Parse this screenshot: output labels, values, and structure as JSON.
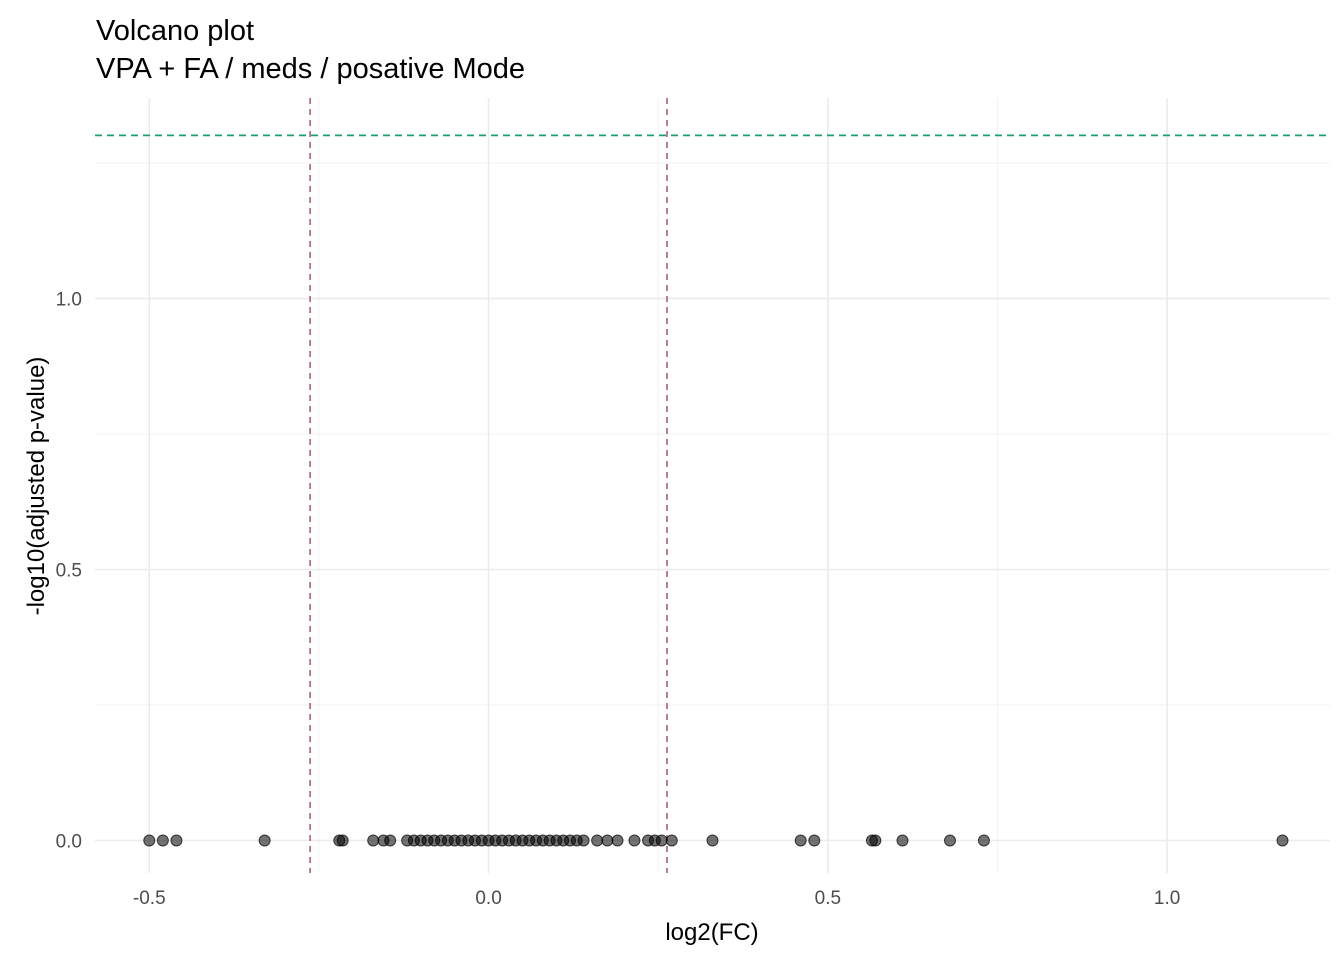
{
  "chart_data": {
    "type": "scatter",
    "title": "Volcano plot",
    "subtitle": "VPA + FA / meds / posative Mode",
    "xlabel": "log2(FC)",
    "ylabel": "-log10(adjusted p-value)",
    "xlim": [
      -0.58,
      1.24
    ],
    "ylim": [
      -0.06,
      1.37
    ],
    "x_ticks": [
      -0.5,
      0.0,
      0.5,
      1.0
    ],
    "x_tick_labels": [
      "-0.5",
      "0.0",
      "0.5",
      "1.0"
    ],
    "y_ticks": [
      0.0,
      0.5,
      1.0
    ],
    "y_tick_labels": [
      "0.0",
      "0.5",
      "1.0"
    ],
    "grid": true,
    "colors": {
      "points": "#000000",
      "hline": "#1b9e77",
      "vlines": "#b0708f"
    },
    "reference_lines": {
      "horizontal": [
        1.301
      ],
      "vertical": [
        -0.263,
        0.263
      ]
    },
    "points": [
      {
        "x": -0.5,
        "y": 0
      },
      {
        "x": -0.48,
        "y": 0
      },
      {
        "x": -0.46,
        "y": 0
      },
      {
        "x": -0.33,
        "y": 0
      },
      {
        "x": -0.22,
        "y": 0
      },
      {
        "x": -0.215,
        "y": 0
      },
      {
        "x": -0.17,
        "y": 0
      },
      {
        "x": -0.155,
        "y": 0
      },
      {
        "x": -0.145,
        "y": 0
      },
      {
        "x": -0.12,
        "y": 0
      },
      {
        "x": -0.11,
        "y": 0
      },
      {
        "x": -0.1,
        "y": 0
      },
      {
        "x": -0.09,
        "y": 0
      },
      {
        "x": -0.08,
        "y": 0
      },
      {
        "x": -0.07,
        "y": 0
      },
      {
        "x": -0.06,
        "y": 0
      },
      {
        "x": -0.05,
        "y": 0
      },
      {
        "x": -0.04,
        "y": 0
      },
      {
        "x": -0.03,
        "y": 0
      },
      {
        "x": -0.02,
        "y": 0
      },
      {
        "x": -0.01,
        "y": 0
      },
      {
        "x": 0.0,
        "y": 0
      },
      {
        "x": 0.01,
        "y": 0
      },
      {
        "x": 0.02,
        "y": 0
      },
      {
        "x": 0.03,
        "y": 0
      },
      {
        "x": 0.04,
        "y": 0
      },
      {
        "x": 0.05,
        "y": 0
      },
      {
        "x": 0.06,
        "y": 0
      },
      {
        "x": 0.07,
        "y": 0
      },
      {
        "x": 0.08,
        "y": 0
      },
      {
        "x": 0.09,
        "y": 0
      },
      {
        "x": 0.1,
        "y": 0
      },
      {
        "x": 0.11,
        "y": 0
      },
      {
        "x": 0.12,
        "y": 0
      },
      {
        "x": 0.13,
        "y": 0
      },
      {
        "x": 0.14,
        "y": 0
      },
      {
        "x": 0.16,
        "y": 0
      },
      {
        "x": 0.175,
        "y": 0
      },
      {
        "x": 0.19,
        "y": 0
      },
      {
        "x": 0.215,
        "y": 0
      },
      {
        "x": 0.235,
        "y": 0
      },
      {
        "x": 0.245,
        "y": 0
      },
      {
        "x": 0.255,
        "y": 0
      },
      {
        "x": 0.27,
        "y": 0
      },
      {
        "x": 0.33,
        "y": 0
      },
      {
        "x": 0.46,
        "y": 0
      },
      {
        "x": 0.48,
        "y": 0
      },
      {
        "x": 0.565,
        "y": 0
      },
      {
        "x": 0.57,
        "y": 0
      },
      {
        "x": 0.61,
        "y": 0
      },
      {
        "x": 0.68,
        "y": 0
      },
      {
        "x": 0.73,
        "y": 0
      },
      {
        "x": 1.17,
        "y": 0
      }
    ]
  }
}
